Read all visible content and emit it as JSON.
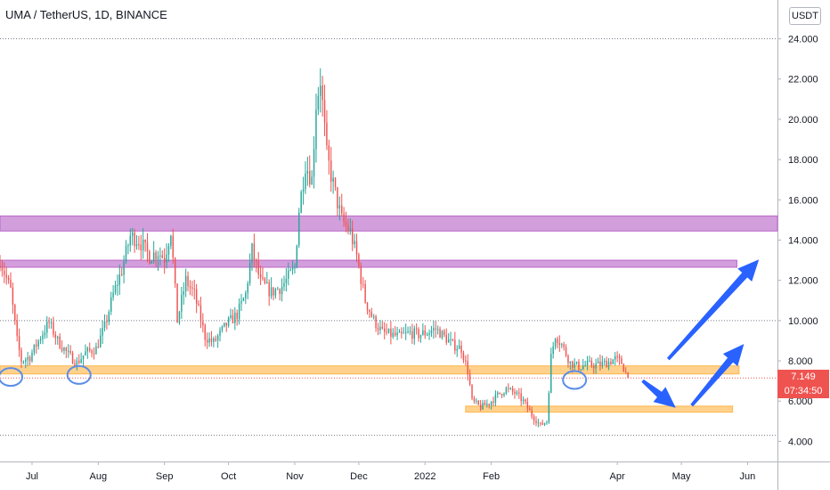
{
  "header": {
    "title": "UMA / TetherUS, 1D, BINANCE",
    "currency": "USDT"
  },
  "colors": {
    "up": "#26a69a",
    "down": "#ef5350",
    "resistance_zone": "#ce93d8",
    "support_zone": "#ffcc80",
    "arrow": "#2962ff",
    "circle": "#5b8de8"
  },
  "price_tag": {
    "price": "7.149",
    "countdown": "07:34:50"
  },
  "chart_data": {
    "type": "candlestick",
    "symbol": "UMA / TetherUS",
    "interval": "1D",
    "exchange": "BINANCE",
    "ylim": [
      3.0,
      24.6
    ],
    "yticks": [
      4.0,
      6.0,
      8.0,
      10.0,
      12.0,
      14.0,
      16.0,
      18.0,
      20.0,
      22.0,
      24.0
    ],
    "ytick_labels": [
      "4.000",
      "6.000",
      "8.000",
      "10.000",
      "12.000",
      "14.000",
      "16.000",
      "18.000",
      "20.000",
      "22.000",
      "24.000"
    ],
    "xlim": [
      "2021-06-16",
      "2022-06-15"
    ],
    "xticks": [
      {
        "date": "2021-07-01",
        "label": "Jul"
      },
      {
        "date": "2021-08-01",
        "label": "Aug"
      },
      {
        "date": "2021-09-01",
        "label": "Sep"
      },
      {
        "date": "2021-10-01",
        "label": "Oct"
      },
      {
        "date": "2021-11-01",
        "label": "Nov"
      },
      {
        "date": "2021-12-01",
        "label": "Dec"
      },
      {
        "date": "2022-01-01",
        "label": "2022"
      },
      {
        "date": "2022-02-01",
        "label": "Feb"
      },
      {
        "date": "2022-04-01",
        "label": "Apr"
      },
      {
        "date": "2022-05-01",
        "label": "May"
      },
      {
        "date": "2022-06-01",
        "label": "Jun"
      }
    ],
    "horizontal_dotted_levels": [
      24.0,
      10.0,
      4.3
    ],
    "price_path": [
      [
        "2021-06-16",
        13.0
      ],
      [
        "2021-06-21",
        11.5
      ],
      [
        "2021-06-24",
        9.0
      ],
      [
        "2021-06-26",
        8.0
      ],
      [
        "2021-06-30",
        8.2
      ],
      [
        "2021-07-05",
        9.2
      ],
      [
        "2021-07-09",
        9.9
      ],
      [
        "2021-07-13",
        9.0
      ],
      [
        "2021-07-18",
        8.3
      ],
      [
        "2021-07-22",
        7.9
      ],
      [
        "2021-07-26",
        8.4
      ],
      [
        "2021-07-31",
        8.6
      ],
      [
        "2021-08-04",
        9.7
      ],
      [
        "2021-08-08",
        11.3
      ],
      [
        "2021-08-12",
        12.5
      ],
      [
        "2021-08-16",
        14.2
      ],
      [
        "2021-08-20",
        14.0
      ],
      [
        "2021-08-25",
        13.2
      ],
      [
        "2021-08-29",
        13.4
      ],
      [
        "2021-09-01",
        13.1
      ],
      [
        "2021-09-04",
        14.5
      ],
      [
        "2021-09-07",
        10.0
      ],
      [
        "2021-09-11",
        12.0
      ],
      [
        "2021-09-15",
        11.3
      ],
      [
        "2021-09-20",
        9.2
      ],
      [
        "2021-09-24",
        8.9
      ],
      [
        "2021-09-30",
        9.8
      ],
      [
        "2021-10-05",
        10.3
      ],
      [
        "2021-10-09",
        11.3
      ],
      [
        "2021-10-12",
        13.5
      ],
      [
        "2021-10-16",
        11.9
      ],
      [
        "2021-10-21",
        11.4
      ],
      [
        "2021-10-26",
        11.7
      ],
      [
        "2021-11-01",
        12.6
      ],
      [
        "2021-11-03",
        15.5
      ],
      [
        "2021-11-06",
        17.8
      ],
      [
        "2021-11-09",
        17.0
      ],
      [
        "2021-11-11",
        20.8
      ],
      [
        "2021-11-13",
        22.0
      ],
      [
        "2021-11-16",
        18.2
      ],
      [
        "2021-11-20",
        16.3
      ],
      [
        "2021-11-23",
        15.0
      ],
      [
        "2021-11-27",
        14.4
      ],
      [
        "2021-11-30",
        13.2
      ],
      [
        "2021-12-04",
        11.0
      ],
      [
        "2021-12-08",
        10.0
      ],
      [
        "2021-12-12",
        9.4
      ],
      [
        "2021-12-16",
        9.3
      ],
      [
        "2021-12-20",
        9.2
      ],
      [
        "2021-12-25",
        9.4
      ],
      [
        "2021-12-29",
        9.3
      ],
      [
        "2022-01-02",
        9.4
      ],
      [
        "2022-01-06",
        9.6
      ],
      [
        "2022-01-10",
        9.2
      ],
      [
        "2022-01-14",
        8.8
      ],
      [
        "2022-01-18",
        8.6
      ],
      [
        "2022-01-21",
        7.5
      ],
      [
        "2022-01-23",
        6.0
      ],
      [
        "2022-01-27",
        5.7
      ],
      [
        "2022-01-31",
        5.9
      ],
      [
        "2022-02-04",
        6.3
      ],
      [
        "2022-02-08",
        6.6
      ],
      [
        "2022-02-12",
        6.4
      ],
      [
        "2022-02-16",
        6.0
      ],
      [
        "2022-02-20",
        5.3
      ],
      [
        "2022-02-24",
        4.8
      ],
      [
        "2022-02-27",
        5.0
      ],
      [
        "2022-03-01",
        8.2
      ],
      [
        "2022-03-03",
        9.3
      ],
      [
        "2022-03-06",
        8.8
      ],
      [
        "2022-03-10",
        7.9
      ],
      [
        "2022-03-14",
        7.7
      ],
      [
        "2022-03-18",
        7.8
      ],
      [
        "2022-03-23",
        7.8
      ],
      [
        "2022-03-27",
        7.9
      ],
      [
        "2022-03-31",
        8.1
      ],
      [
        "2022-04-03",
        7.9
      ],
      [
        "2022-04-06",
        7.149
      ]
    ],
    "annotations": {
      "resistance_zones": [
        {
          "start": "2021-06-16",
          "end": "2022-06-15",
          "low": 14.45,
          "high": 15.2
        },
        {
          "start": "2021-06-16",
          "end": "2022-05-27",
          "low": 12.65,
          "high": 13.0
        }
      ],
      "support_zones": [
        {
          "start": "2021-06-16",
          "end": "2022-05-28",
          "low": 7.35,
          "high": 7.75
        },
        {
          "start": "2022-01-20",
          "end": "2022-05-25",
          "low": 5.45,
          "high": 5.75
        }
      ],
      "current_price_line": 7.149,
      "circles": [
        {
          "date": "2021-06-21",
          "price": 7.2
        },
        {
          "date": "2021-07-23",
          "price": 7.3
        },
        {
          "date": "2022-03-12",
          "price": 7.05
        }
      ],
      "arrows": [
        {
          "from": [
            "2022-04-13",
            7.0
          ],
          "to": [
            "2022-04-28",
            5.7
          ]
        },
        {
          "from": [
            "2022-04-25",
            8.1
          ],
          "to": [
            "2022-06-06",
            13.0
          ]
        },
        {
          "from": [
            "2022-05-06",
            5.8
          ],
          "to": [
            "2022-05-30",
            8.8
          ]
        }
      ]
    }
  }
}
